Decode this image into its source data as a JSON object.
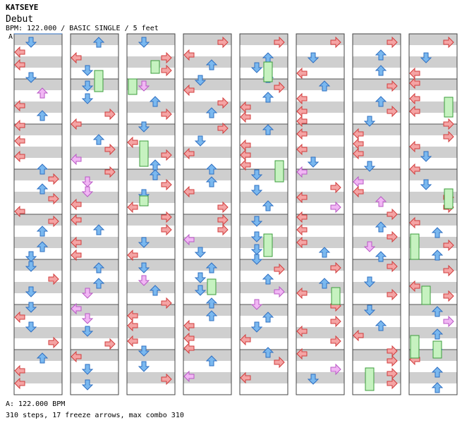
{
  "header": {
    "artist": "KATSEYE",
    "title": "Debut",
    "info": "BPM: 122.000 / BASIC SINGLE / 5 feet"
  },
  "marker_label": "A",
  "footer": {
    "bpm_line": "A: 122.000 BPM",
    "stats_line": "310 steps, 17 freeze arrows, max combo 310"
  },
  "colors": {
    "left_right": "#f4a4a4",
    "left_right_stroke": "#d23c3c",
    "down_up": "#7ab8ef",
    "down_up_stroke": "#2e6fc2",
    "half_beat": "#f1b6f4",
    "half_beat_stroke": "#b858c4",
    "freeze": "#c6f2c0",
    "freeze_stroke": "#3c9c3c",
    "stripe": "#cfcfcf"
  },
  "chart_data": {
    "type": "dance-chart",
    "mode": "BASIC SINGLE",
    "bpm": 122,
    "difficulty_feet": 5,
    "steps": 310,
    "freeze_arrows": 17,
    "max_combo": 310,
    "lanes": [
      "left",
      "down",
      "up",
      "right"
    ],
    "columns": 8,
    "measures_per_column": 8
  }
}
